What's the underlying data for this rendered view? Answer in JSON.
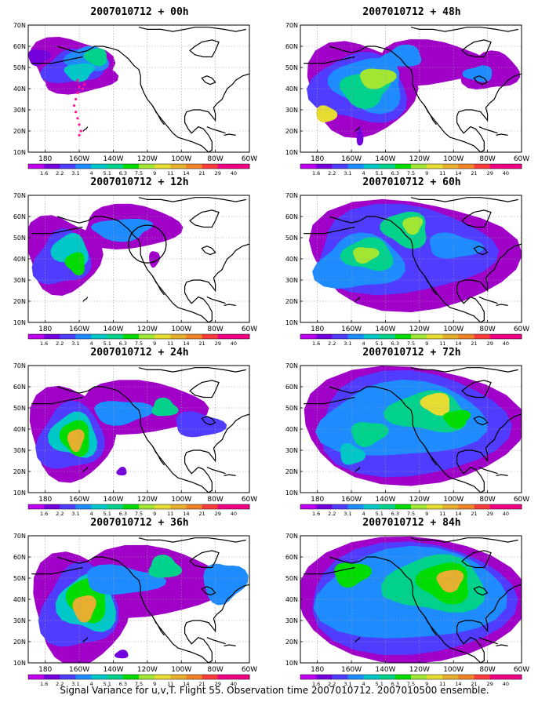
{
  "caption": "Signal Variance for u,v,T. Flight 55. Observation time 2007010712. 2007010500 ensemble.",
  "lat_labels": [
    "70N",
    "60N",
    "50N",
    "40N",
    "30N",
    "20N",
    "10N"
  ],
  "lon_labels": [
    "180",
    "160W",
    "140W",
    "120W",
    "100W",
    "80W",
    "60W"
  ],
  "colorbar": {
    "labels": [
      "1.6",
      "2.2",
      "3.1",
      "4",
      "5.1",
      "6.3",
      "7.5",
      "9",
      "11",
      "14",
      "21",
      "29",
      "40"
    ],
    "colors": [
      "#a000c8",
      "#7300dc",
      "#4f3cff",
      "#1e8cff",
      "#00c8c8",
      "#00d28c",
      "#00dc00",
      "#a0e632",
      "#e6dc32",
      "#e6af2d",
      "#f08228",
      "#fa3c3c",
      "#f00082"
    ]
  },
  "panels": [
    {
      "id": "p00",
      "title": "2007010712 + 00h",
      "overlay": "obs-points"
    },
    {
      "id": "p48",
      "title": "2007010712 + 48h",
      "overlay": ""
    },
    {
      "id": "p12",
      "title": "2007010712 + 12h",
      "overlay": "target-circle"
    },
    {
      "id": "p60",
      "title": "2007010712 + 60h",
      "overlay": ""
    },
    {
      "id": "p24",
      "title": "2007010712 + 24h",
      "overlay": ""
    },
    {
      "id": "p72",
      "title": "2007010712 + 72h",
      "overlay": ""
    },
    {
      "id": "p36",
      "title": "2007010712 + 36h",
      "overlay": ""
    },
    {
      "id": "p84",
      "title": "2007010712 + 84h",
      "overlay": ""
    }
  ]
}
